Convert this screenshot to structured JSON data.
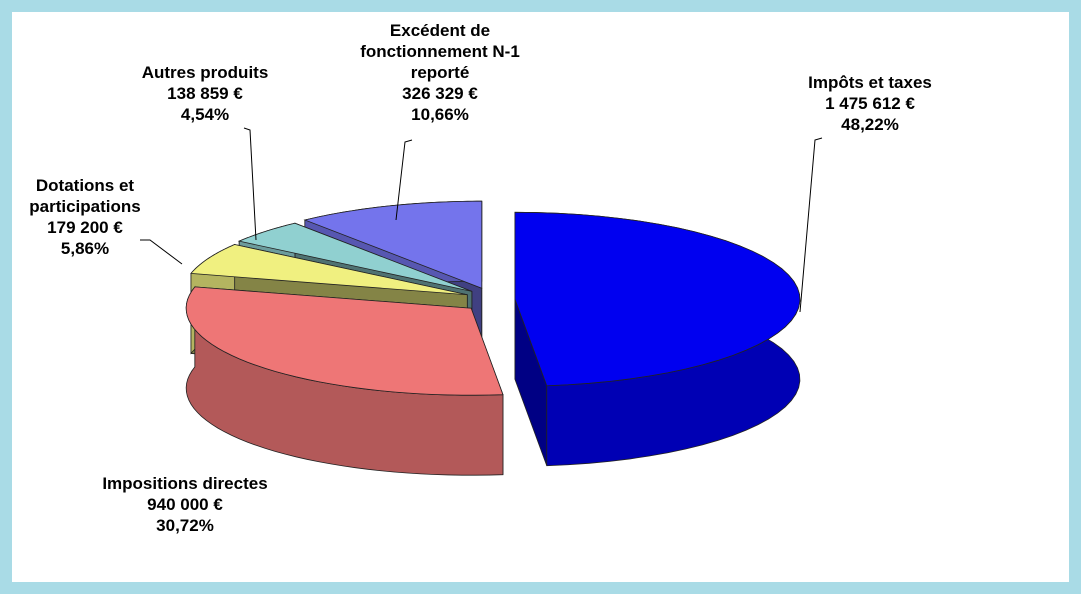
{
  "chart_data": {
    "type": "pie3d",
    "categories": [
      "Impôts et taxes",
      "Impositions directes",
      "Dotations et participations",
      "Autres produits",
      "Excédent de fonctionnement N-1 reporté"
    ],
    "values": [
      48.22,
      30.72,
      5.86,
      4.54,
      10.66
    ],
    "value_labels": [
      "48,22%",
      "30,72%",
      "5,86%",
      "4,54%",
      "10,66%"
    ],
    "amount_labels": [
      "1 475 612 €",
      "940 000 €",
      "179 200 €",
      "138 859 €",
      "326 329 €"
    ],
    "colors": [
      "#0000f0",
      "#ee7676",
      "#f0f080",
      "#90d0d0",
      "#7474ec"
    ]
  }
}
